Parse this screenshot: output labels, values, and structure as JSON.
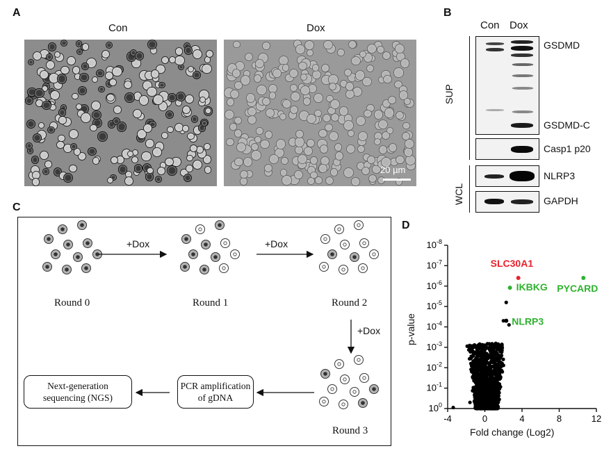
{
  "panelA": {
    "letter": "A",
    "left_label": "Con",
    "right_label": "Dox",
    "scale_bar": "20 µm"
  },
  "panelB": {
    "letter": "B",
    "lanes": [
      "Con",
      "Dox"
    ],
    "bands": {
      "gsdmd": "GSDMD",
      "gsdmd_c": "GSDMD-C",
      "casp1": "Casp1 p20",
      "nlrp3": "NLRP3",
      "gapdh": "GAPDH"
    },
    "groups": {
      "sup": "SUP",
      "wcl": "WCL"
    }
  },
  "panelC": {
    "letter": "C",
    "rounds": [
      "Round 0",
      "Round 1",
      "Round 2",
      "Round 3"
    ],
    "treatment": "+Dox",
    "pcr": "PCR amplification of gDNA",
    "pcr_line1": "PCR amplification",
    "pcr_line2": "of gDNA",
    "ngs_line1": "Next-generation",
    "ngs_line2": "sequencing (NGS)"
  },
  "chart_data": {
    "type": "scatter",
    "panel_letter": "D",
    "xlabel": "Fold change (Log2)",
    "ylabel": "p-value",
    "x_ticks": [
      "-4",
      "0",
      "4",
      "8",
      "12"
    ],
    "y_ticks": [
      "10-8",
      "10-7",
      "10-6",
      "10-5",
      "10-4",
      "10-3",
      "10-2",
      "10-1",
      "100"
    ],
    "xlim": [
      -4,
      12
    ],
    "ylim_neg_log10": [
      0,
      8
    ],
    "y_scale": "log (inverted)",
    "highlighted": [
      {
        "label": "SLC30A1",
        "x": 3.6,
        "p": 4e-07,
        "color": "#e8212b"
      },
      {
        "label": "IKBKG",
        "x": 2.7,
        "p": 1.2e-06,
        "color": "#2fb22f"
      },
      {
        "label": "PYCARD",
        "x": 10.6,
        "p": 4e-07,
        "color": "#2fb22f"
      },
      {
        "label": "NLRP3",
        "x": 2.3,
        "p": 5e-05,
        "color": "#2fb22f"
      }
    ],
    "background_color": "#000000"
  }
}
